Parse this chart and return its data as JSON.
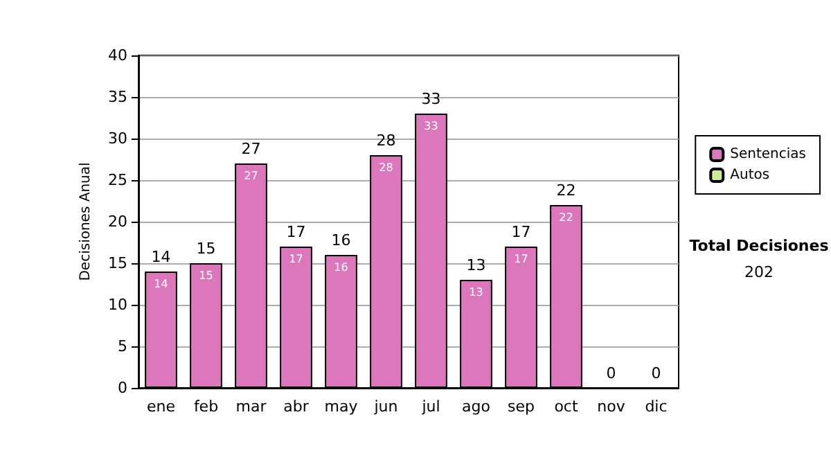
{
  "chart_data": {
    "type": "bar",
    "stacked": true,
    "ylabel": "Decisiones Anual",
    "categories": [
      "ene",
      "feb",
      "mar",
      "abr",
      "may",
      "jun",
      "jul",
      "ago",
      "sep",
      "oct",
      "nov",
      "dic"
    ],
    "series": [
      {
        "name": "Sentencias",
        "color": "#dd77bb",
        "values": [
          14,
          15,
          27,
          17,
          16,
          28,
          33,
          13,
          17,
          22,
          0,
          0
        ],
        "value_labels": [
          "14",
          "15",
          "27",
          "17",
          "16",
          "28",
          "33",
          "13",
          "17",
          "22",
          null,
          null
        ]
      },
      {
        "name": "Autos",
        "color": "#ccee99",
        "values": [
          0,
          0,
          0,
          0,
          0,
          0,
          0,
          0,
          0,
          0,
          0,
          0
        ]
      }
    ],
    "totals": [
      "14",
      "15",
      "27",
      "17",
      "16",
      "28",
      "33",
      "13",
      "17",
      "22",
      "0",
      "0"
    ],
    "ylim": [
      0,
      40
    ],
    "yticks": [
      0,
      5,
      10,
      15,
      20,
      25,
      30,
      35,
      40
    ],
    "grid": "y",
    "legend": "right",
    "annotations": [
      "Total Decisiones",
      "202"
    ]
  }
}
